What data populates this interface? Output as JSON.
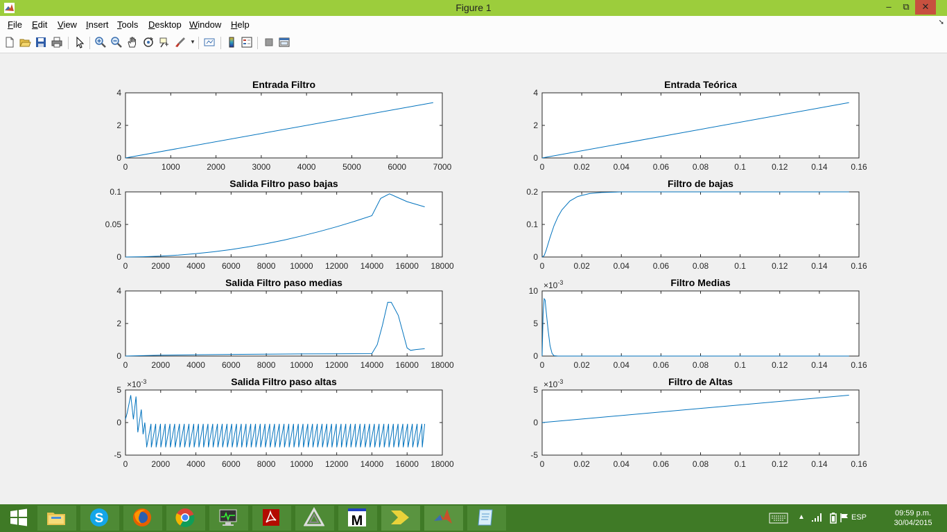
{
  "window": {
    "title": "Figure 1",
    "minimize_label": "–",
    "maximize_label": "⧉",
    "close_label": "✕"
  },
  "menu": {
    "items": [
      {
        "label": "File",
        "accel": "F",
        "rest": "ile"
      },
      {
        "label": "Edit",
        "accel": "E",
        "rest": "dit"
      },
      {
        "label": "View",
        "accel": "V",
        "rest": "iew"
      },
      {
        "label": "Insert",
        "accel": "I",
        "rest": "nsert"
      },
      {
        "label": "Tools",
        "accel": "T",
        "rest": "ools"
      },
      {
        "label": "Desktop",
        "accel": "D",
        "rest": "esktop"
      },
      {
        "label": "Window",
        "accel": "W",
        "rest": "indow"
      },
      {
        "label": "Help",
        "accel": "H",
        "rest": "elp"
      }
    ]
  },
  "toolbar": {
    "icons": [
      "new-figure-icon",
      "open-file-icon",
      "save-icon",
      "print-icon",
      "edit-plot-icon",
      "zoom-in-icon",
      "zoom-out-icon",
      "pan-icon",
      "rotate-3d-icon",
      "data-cursor-icon",
      "brush-icon",
      "link-plot-icon",
      "colorbar-icon",
      "legend-icon",
      "hide-plot-tools-icon",
      "show-plot-tools-icon"
    ]
  },
  "chart_data": [
    {
      "type": "line",
      "title": "Entrada Filtro",
      "xlim": [
        0,
        7000
      ],
      "ylim": [
        0,
        4
      ],
      "xticks": [
        "0",
        "1000",
        "2000",
        "3000",
        "4000",
        "5000",
        "6000",
        "7000"
      ],
      "yticks": [
        "0",
        "2",
        "4"
      ],
      "exponent": "",
      "series": [
        {
          "x": [
            0,
            6800
          ],
          "y": [
            0,
            3.4
          ]
        }
      ]
    },
    {
      "type": "line",
      "title": "Entrada Teórica",
      "xlim": [
        0,
        0.16
      ],
      "ylim": [
        0,
        4
      ],
      "xticks": [
        "0",
        "0.02",
        "0.04",
        "0.06",
        "0.08",
        "0.1",
        "0.12",
        "0.14",
        "0.16"
      ],
      "yticks": [
        "0",
        "2",
        "4"
      ],
      "exponent": "",
      "series": [
        {
          "x": [
            0,
            0.155
          ],
          "y": [
            0,
            3.4
          ]
        }
      ]
    },
    {
      "type": "line",
      "title": "Salida Filtro paso bajas",
      "xlim": [
        0,
        18000
      ],
      "ylim": [
        0,
        0.1
      ],
      "xticks": [
        "0",
        "2000",
        "4000",
        "6000",
        "8000",
        "10000",
        "12000",
        "14000",
        "16000",
        "18000"
      ],
      "yticks": [
        "0",
        "0.05",
        "0.1"
      ],
      "exponent": "",
      "series": [
        {
          "x": [
            0,
            1000,
            2000,
            3000,
            4000,
            5000,
            6000,
            7000,
            8000,
            9000,
            10000,
            11000,
            12000,
            13000,
            14000,
            14500,
            15000,
            15500,
            16000,
            16500,
            17000
          ],
          "y": [
            0,
            0.0004,
            0.0014,
            0.003,
            0.0052,
            0.008,
            0.0115,
            0.0157,
            0.0205,
            0.026,
            0.0322,
            0.039,
            0.0465,
            0.0547,
            0.0635,
            0.09,
            0.097,
            0.091,
            0.085,
            0.081,
            0.077
          ]
        }
      ]
    },
    {
      "type": "line",
      "title": "Filtro de bajas",
      "xlim": [
        0,
        0.16
      ],
      "ylim": [
        0,
        0.2
      ],
      "xticks": [
        "0",
        "0.02",
        "0.04",
        "0.06",
        "0.08",
        "0.1",
        "0.12",
        "0.14",
        "0.16"
      ],
      "yticks": [
        "0",
        "0.1",
        "0.2"
      ],
      "exponent": "",
      "series": [
        {
          "x": [
            0,
            0.001,
            0.002,
            0.004,
            0.006,
            0.008,
            0.01,
            0.014,
            0.018,
            0.024,
            0.03,
            0.04,
            0.06,
            0.1,
            0.155
          ],
          "y": [
            0,
            0.004,
            0.02,
            0.06,
            0.096,
            0.124,
            0.145,
            0.172,
            0.186,
            0.195,
            0.198,
            0.2,
            0.2,
            0.2,
            0.2
          ]
        }
      ]
    },
    {
      "type": "line",
      "title": "Salida Filtro paso medias",
      "xlim": [
        0,
        18000
      ],
      "ylim": [
        0,
        4
      ],
      "xticks": [
        "0",
        "2000",
        "4000",
        "6000",
        "8000",
        "10000",
        "12000",
        "14000",
        "16000",
        "18000"
      ],
      "yticks": [
        "0",
        "2",
        "4"
      ],
      "exponent": "",
      "series": [
        {
          "x": [
            0,
            2000,
            4000,
            6000,
            8000,
            10000,
            12000,
            14000,
            14300,
            14600,
            14900,
            15100,
            15500,
            15800,
            16000,
            16200,
            16500,
            16700,
            17000
          ],
          "y": [
            0,
            0.05,
            0.08,
            0.1,
            0.12,
            0.13,
            0.14,
            0.15,
            0.7,
            1.9,
            3.3,
            3.3,
            2.5,
            1.3,
            0.5,
            0.35,
            0.4,
            0.42,
            0.45
          ]
        }
      ]
    },
    {
      "type": "line",
      "title": "Filtro Medias",
      "xlim": [
        0,
        0.16
      ],
      "ylim": [
        0,
        10
      ],
      "xticks": [
        "0",
        "0.02",
        "0.04",
        "0.06",
        "0.08",
        "0.1",
        "0.12",
        "0.14",
        "0.16"
      ],
      "yticks": [
        "0",
        "5",
        "10"
      ],
      "exponent": "-3",
      "series": [
        {
          "x": [
            0,
            0.0005,
            0.001,
            0.0015,
            0.002,
            0.003,
            0.004,
            0.005,
            0.006,
            0.008,
            0.155
          ],
          "y": [
            0,
            6.5,
            8.8,
            8.6,
            7,
            4,
            1.6,
            0.4,
            0.05,
            0,
            0
          ]
        }
      ]
    },
    {
      "type": "line",
      "title": "Salida Filtro paso altas",
      "xlim": [
        0,
        18000
      ],
      "ylim": [
        -5,
        5
      ],
      "xticks": [
        "0",
        "2000",
        "4000",
        "6000",
        "8000",
        "10000",
        "12000",
        "14000",
        "16000",
        "18000"
      ],
      "yticks": [
        "-5",
        "0",
        "5"
      ],
      "exponent": "-3",
      "sawtooth": {
        "start": 1200,
        "end": 17000,
        "period": 270,
        "low": -3.8,
        "high": -0.2
      },
      "series": [
        {
          "x": [
            0,
            100,
            300,
            450,
            600,
            700,
            900,
            1000,
            1100,
            1200
          ],
          "y": [
            0.5,
            1.5,
            4.2,
            0.5,
            4.0,
            -1.5,
            2.0,
            -1.8,
            0,
            -3.5
          ]
        }
      ]
    },
    {
      "type": "line",
      "title": "Filtro de Altas",
      "xlim": [
        0,
        0.16
      ],
      "ylim": [
        -5,
        5
      ],
      "xticks": [
        "0",
        "0.02",
        "0.04",
        "0.06",
        "0.08",
        "0.1",
        "0.12",
        "0.14",
        "0.16"
      ],
      "yticks": [
        "-5",
        "0",
        "5"
      ],
      "exponent": "-3",
      "series": [
        {
          "x": [
            0,
            0.155
          ],
          "y": [
            0,
            4.2
          ]
        }
      ]
    }
  ],
  "colors": {
    "line": "#0072bd",
    "titlebar": "#9ccd3c",
    "taskbar": "#3f7a26"
  },
  "taskbar": {
    "apps": [
      "start-icon",
      "file-explorer-icon",
      "skype-icon",
      "firefox-icon",
      "chrome-icon",
      "monitor-app-icon",
      "acrobat-icon",
      "delta-app-icon",
      "m-app-icon",
      "chevron-app-icon",
      "matlab-icon",
      "notes-app-icon"
    ],
    "language": "ESP",
    "time": "09:59 p.m.",
    "date": "30/04/2015"
  }
}
